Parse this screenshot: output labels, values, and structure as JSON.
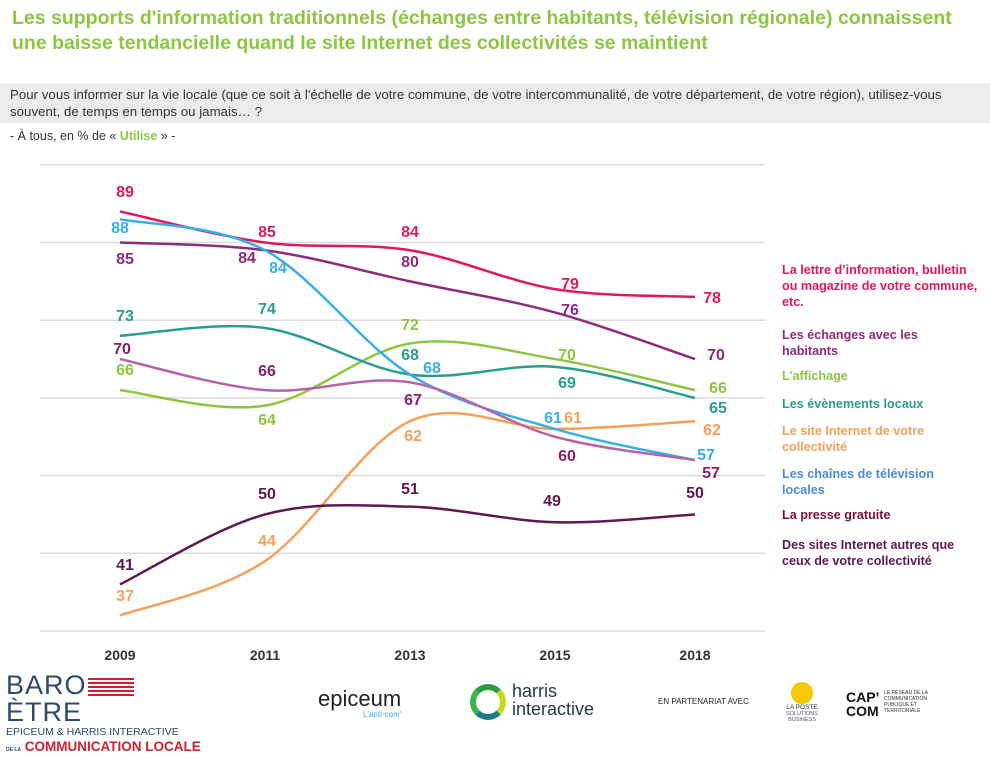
{
  "title": "Les supports d'information traditionnels (échanges entre habitants, télévision régionale) connaissent une baisse tendancielle quand le site Internet des collectivités se maintient",
  "question": "Pour vous informer sur la vie locale (que ce soit à l'échelle de votre commune, de votre intercommunalité, de votre département, de votre région), utilisez-vous souvent, de temps en temps ou jamais… ?",
  "subtitle": {
    "prefix": "- À tous, en % de « ",
    "highlight": "Utilise",
    "suffix": " » -"
  },
  "chart_data": {
    "type": "line",
    "categories": [
      "2009",
      "2011",
      "2013",
      "2015",
      "2018"
    ],
    "ylim": [
      35,
      95
    ],
    "grid": true,
    "legend_placement": "right",
    "series": [
      {
        "name": "La lettre d’information, bulletin ou magazine de votre commune, etc.",
        "color": "#e2185b",
        "values": [
          89,
          85,
          84,
          79,
          78
        ]
      },
      {
        "name": "Les échanges avec les habitants",
        "color": "#8e2b7a",
        "values": [
          85,
          84,
          80,
          76,
          70
        ]
      },
      {
        "name": "L’affichage",
        "color": "#8dc63f",
        "values": [
          66,
          64,
          72,
          70,
          66
        ]
      },
      {
        "name": "Les évènements locaux",
        "color": "#2a9d8f",
        "values": [
          73,
          74,
          68,
          69,
          65
        ]
      },
      {
        "name": "Le site Internet de votre collectivité",
        "color": "#f5a05a",
        "values": [
          37,
          44,
          62,
          61,
          62
        ]
      },
      {
        "name": "Les chaînes de télévision locales",
        "color": "#3aaee6",
        "values": [
          88,
          84,
          68,
          61,
          57
        ]
      },
      {
        "name": "La presse gratuite",
        "color": "#b564a8",
        "label_color": "#8b1e6e",
        "values": [
          70,
          66,
          67,
          60,
          57
        ]
      },
      {
        "name": "Des sites Internet autres que ceux de votre collectivité",
        "color": "#5e1a4f",
        "values": [
          41,
          50,
          51,
          49,
          50
        ]
      }
    ]
  },
  "legend_colors": [
    "#e2185b",
    "#8e2b7a",
    "#8dc63f",
    "#2a9d8f",
    "#f5a05a",
    "#4a8ccc",
    "#7a1030",
    "#5e1a4f"
  ],
  "footer": {
    "barometre": {
      "line1": "BARO",
      "line1b": "ÈTRE",
      "line2": "EPICEUM & HARRIS INTERACTIVE",
      "line3_prefix": "DE LA",
      "line3": "COMMUNICATION LOCALE"
    },
    "epiceum": {
      "name": "epiceum",
      "tagline": "L'anti-com'"
    },
    "harris": {
      "name1": "harris",
      "name2": "interactive"
    },
    "partner_text": "EN PARTENARIAT AVEC",
    "laposte": {
      "line1": "LA POSTE",
      "line2": "SOLUTIONS",
      "line3": "BUSINESS"
    },
    "capcom": {
      "line1": "CAP’",
      "line2": "COM",
      "tag": "LE RÉSEAU DE LA COMMUNICATION PUBLIQUE ET TERRITORIALE"
    }
  }
}
